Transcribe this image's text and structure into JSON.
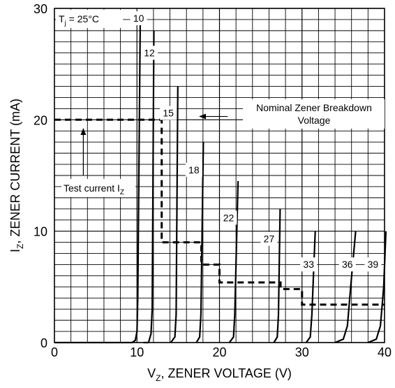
{
  "chart_data": {
    "type": "line",
    "title": "",
    "annotation_tj": {
      "main": "T",
      "sub": "j",
      "rest": " = 25°C"
    },
    "xlabel": {
      "pre": "V",
      "sub": "Z",
      "post": ", ZENER VOLTAGE (V)"
    },
    "ylabel": {
      "pre": "I",
      "sub": "Z",
      "post": ", ZENER CURRENT (mA)"
    },
    "xlim": [
      0,
      40
    ],
    "ylim": [
      0,
      30
    ],
    "x_ticks": [
      0,
      10,
      20,
      30,
      40
    ],
    "y_ticks": [
      0,
      10,
      20,
      30
    ],
    "x_tick_labels": [
      "0",
      "10",
      "20",
      "30",
      "40"
    ],
    "y_tick_labels": [
      "0",
      "10",
      "20",
      "30"
    ],
    "grid": true,
    "series": [
      {
        "name": "10",
        "label_at": [
          10.2,
          28.8
        ],
        "points": [
          [
            0,
            0
          ],
          [
            9.4,
            0
          ],
          [
            9.8,
            0.2
          ],
          [
            10.0,
            1.0
          ],
          [
            10.1,
            4.0
          ],
          [
            10.4,
            29.0
          ]
        ]
      },
      {
        "name": "12",
        "label_at": [
          11.5,
          25.7
        ],
        "points": [
          [
            10.8,
            0
          ],
          [
            11.4,
            0
          ],
          [
            11.7,
            0.8
          ],
          [
            11.85,
            3.0
          ],
          [
            12.05,
            28.0
          ]
        ]
      },
      {
        "name": "15",
        "label_at": [
          13.8,
          20.3
        ],
        "points": [
          [
            14.1,
            0
          ],
          [
            14.6,
            0.5
          ],
          [
            14.75,
            2.5
          ],
          [
            14.95,
            23.0
          ]
        ]
      },
      {
        "name": "18",
        "label_at": [
          16.9,
          15.2
        ],
        "points": [
          [
            17.2,
            0
          ],
          [
            17.6,
            0.5
          ],
          [
            17.75,
            2.5
          ],
          [
            18.05,
            18.0
          ]
        ]
      },
      {
        "name": "22",
        "label_at": [
          21.1,
          10.9
        ],
        "points": [
          [
            21.2,
            0
          ],
          [
            21.7,
            0.5
          ],
          [
            21.85,
            2.5
          ],
          [
            22.25,
            14.5
          ]
        ]
      },
      {
        "name": "27",
        "label_at": [
          26.0,
          9.0
        ],
        "points": [
          [
            26.6,
            0
          ],
          [
            27.0,
            0.5
          ],
          [
            27.15,
            2.5
          ],
          [
            27.35,
            12.0
          ]
        ]
      },
      {
        "name": "33",
        "label_at": [
          30.8,
          6.7
        ],
        "points": [
          [
            30.5,
            0
          ],
          [
            31.0,
            0.5
          ],
          [
            31.2,
            2.5
          ],
          [
            31.6,
            10.0
          ]
        ]
      },
      {
        "name": "36",
        "label_at": [
          35.5,
          6.7
        ],
        "points": [
          [
            34.0,
            0
          ],
          [
            35.0,
            0.3
          ],
          [
            35.5,
            1.5
          ],
          [
            35.9,
            5.0
          ],
          [
            36.5,
            10.0
          ]
        ]
      },
      {
        "name": "39",
        "label_at": [
          38.6,
          6.7
        ],
        "points": [
          [
            38.0,
            0
          ],
          [
            39.0,
            0.3
          ],
          [
            39.5,
            1.5
          ],
          [
            39.9,
            5.0
          ],
          [
            40.2,
            10.0
          ]
        ]
      }
    ],
    "test_current_path": [
      [
        0,
        20
      ],
      [
        13.0,
        20
      ],
      [
        13.0,
        9.0
      ],
      [
        17.8,
        9.0
      ],
      [
        17.8,
        7.0
      ],
      [
        20.0,
        7.0
      ],
      [
        20.0,
        5.4
      ],
      [
        27.4,
        5.4
      ],
      [
        27.4,
        4.8
      ],
      [
        30.0,
        4.8
      ],
      [
        30.0,
        3.4
      ],
      [
        40.0,
        3.4
      ]
    ],
    "annotations": {
      "nominal": {
        "lines": [
          "Nominal Zener Breakdown",
          "Voltage"
        ],
        "arrow_from": [
          21.0,
          20.3
        ],
        "arrow_to": [
          17.6,
          20.3
        ]
      },
      "test_current": {
        "pre": "Test current I",
        "sub": "Z",
        "arrow_from": [
          3.5,
          15.0
        ],
        "arrow_to": [
          3.5,
          19.2
        ]
      }
    }
  }
}
